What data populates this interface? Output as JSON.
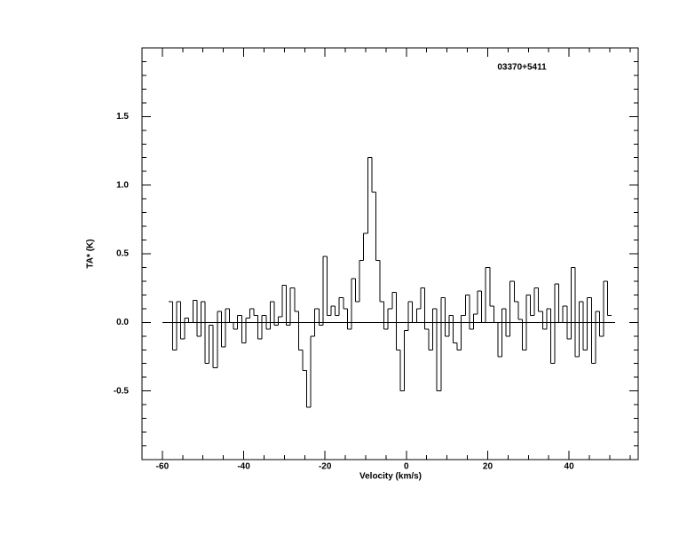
{
  "chart_data": {
    "type": "step",
    "annotation": "03370+5411",
    "x_label": "Velocity (km/s)",
    "y_label": "TA* (K)",
    "xlim": [
      -65,
      57
    ],
    "ylim": [
      -1,
      2
    ],
    "xticks": [
      -60,
      -40,
      -20,
      0,
      20,
      40
    ],
    "yticks": [
      {
        "value": -0.5,
        "label": "-0.5"
      },
      {
        "value": 0,
        "label": "0.0"
      },
      {
        "value": 0.5,
        "label": "0.5"
      },
      {
        "value": 1,
        "label": "1.0"
      },
      {
        "value": 1.5,
        "label": "1.5"
      }
    ],
    "color": "#000000",
    "x": [
      -58,
      -57,
      -56,
      -55,
      -54,
      -53,
      -52,
      -51,
      -50,
      -49,
      -48,
      -47,
      -46,
      -45,
      -44,
      -43,
      -42,
      -41,
      -40,
      -39,
      -38,
      -37,
      -36,
      -35,
      -34,
      -33,
      -32,
      -31,
      -30,
      -29,
      -28,
      -27,
      -26,
      -25,
      -24,
      -23,
      -22,
      -21,
      -20,
      -19,
      -18,
      -17,
      -16,
      -15,
      -14,
      -13,
      -12,
      -11,
      -10,
      -9,
      -8,
      -7,
      -6,
      -5,
      -4,
      -3,
      -2,
      -1,
      0,
      1,
      2,
      3,
      4,
      5,
      6,
      7,
      8,
      9,
      10,
      11,
      12,
      13,
      14,
      15,
      16,
      17,
      18,
      19,
      20,
      21,
      22,
      23,
      24,
      25,
      26,
      27,
      28,
      29,
      30,
      31,
      32,
      33,
      34,
      35,
      36,
      37,
      38,
      39,
      40,
      41,
      42,
      43,
      44,
      45,
      46,
      47,
      48,
      49,
      50
    ],
    "values": [
      0.15,
      -0.2,
      0.15,
      -0.12,
      0.03,
      0.0,
      0.16,
      -0.1,
      0.15,
      -0.3,
      -0.02,
      -0.33,
      0.08,
      -0.18,
      0.1,
      0.0,
      -0.05,
      0.05,
      -0.15,
      0.03,
      0.1,
      0.05,
      -0.12,
      0.05,
      -0.05,
      0.15,
      -0.02,
      0.04,
      0.27,
      -0.02,
      0.25,
      0.08,
      -0.2,
      -0.35,
      -0.62,
      -0.1,
      0.1,
      -0.02,
      0.48,
      0.05,
      0.12,
      0.05,
      0.18,
      0.1,
      -0.05,
      0.32,
      0.15,
      0.45,
      0.65,
      1.2,
      0.95,
      0.45,
      0.15,
      -0.05,
      0.1,
      0.22,
      -0.2,
      -0.5,
      -0.06,
      0.15,
      0.0,
      0.1,
      0.25,
      -0.05,
      -0.2,
      0.1,
      -0.5,
      0.18,
      -0.1,
      0.05,
      -0.15,
      -0.2,
      0.05,
      0.2,
      -0.05,
      0.06,
      0.23,
      0.0,
      0.4,
      0.12,
      0.0,
      -0.25,
      0.1,
      -0.1,
      0.3,
      0.15,
      0.02,
      -0.2,
      0.2,
      0.05,
      0.25,
      0.08,
      -0.05,
      0.1,
      -0.3,
      0.28,
      0.0,
      0.12,
      -0.12,
      0.4,
      -0.25,
      0.15,
      -0.2,
      0.18,
      -0.3,
      0.08,
      -0.1,
      0.3,
      0.05
    ]
  }
}
